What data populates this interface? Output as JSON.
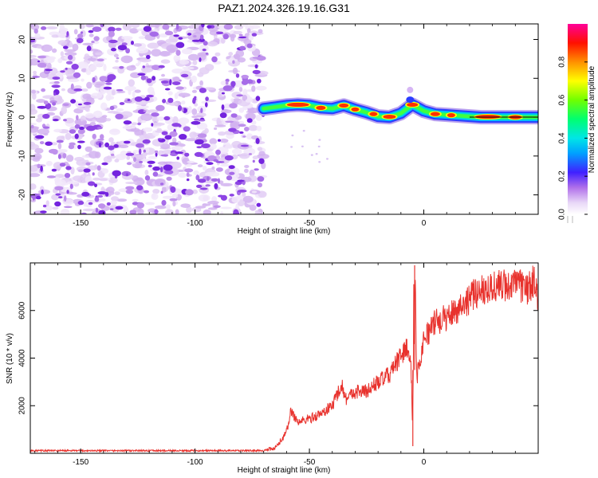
{
  "title": "PAZ1.2024.326.19.16.G31",
  "chart_data": [
    {
      "type": "heatmap",
      "xlabel": "Height of straight line (km)",
      "ylabel": "Frequency (Hz)",
      "xlim": [
        -172,
        50
      ],
      "ylim": [
        -25,
        24
      ],
      "x_ticks": [
        -150,
        -100,
        -50,
        0
      ],
      "y_ticks": [
        -20,
        -10,
        0,
        10,
        20
      ],
      "colorbar": {
        "label": "Normalized spectral amplitude",
        "range": [
          0,
          1
        ],
        "ticks": [
          "0.0",
          "0.2",
          "0.4",
          "0.6",
          "0.8"
        ],
        "colormap": [
          "#ffffff",
          "#e6d6f5",
          "#b47be8",
          "#7f2be0",
          "#2020ff",
          "#00c8ff",
          "#00ff80",
          "#80ff00",
          "#ffff00",
          "#ff8000",
          "#ff0000",
          "#ff00aa"
        ]
      },
      "noise_region_x": [
        -172,
        -70
      ],
      "signal_trace": {
        "x": [
          -70,
          -65,
          -60,
          -55,
          -50,
          -45,
          -40,
          -35,
          -30,
          -25,
          -20,
          -15,
          -10,
          -5,
          0,
          5,
          10,
          15,
          20,
          25,
          30,
          35,
          40,
          45,
          50
        ],
        "y": [
          2.2,
          2.6,
          3.0,
          3.2,
          3.0,
          2.4,
          2.2,
          3.0,
          2.0,
          1.2,
          0.2,
          0.0,
          1.0,
          3.2,
          1.6,
          0.8,
          0.6,
          0.4,
          0.2,
          0.0,
          0.0,
          0.0,
          0.0,
          0.0,
          0.0
        ]
      }
    },
    {
      "type": "line",
      "xlabel": "Height of straight line (km)",
      "ylabel": "SNR (10 * v/v)",
      "xlim": [
        -172,
        50
      ],
      "ylim": [
        0,
        8000
      ],
      "x_ticks": [
        -150,
        -100,
        -50,
        0
      ],
      "y_ticks": [
        2000,
        4000,
        6000
      ],
      "series": [
        {
          "color": "#e8322d",
          "x": [
            -172,
            -150,
            -125,
            -100,
            -80,
            -70,
            -65,
            -62,
            -60,
            -58,
            -55,
            -52,
            -50,
            -45,
            -40,
            -36,
            -34,
            -30,
            -25,
            -20,
            -15,
            -10,
            -7,
            -5,
            -4,
            -3,
            0,
            5,
            10,
            15,
            20,
            25,
            30,
            35,
            40,
            45,
            48,
            50
          ],
          "y": [
            110,
            110,
            110,
            110,
            110,
            115,
            200,
            600,
            900,
            1800,
            1300,
            1400,
            1450,
            1650,
            2000,
            2900,
            2300,
            2600,
            2600,
            3000,
            3300,
            4100,
            4500,
            3000,
            7800,
            3200,
            4800,
            5500,
            5700,
            6100,
            6500,
            6900,
            7000,
            7050,
            7100,
            6900,
            7200,
            6600
          ]
        }
      ]
    }
  ]
}
